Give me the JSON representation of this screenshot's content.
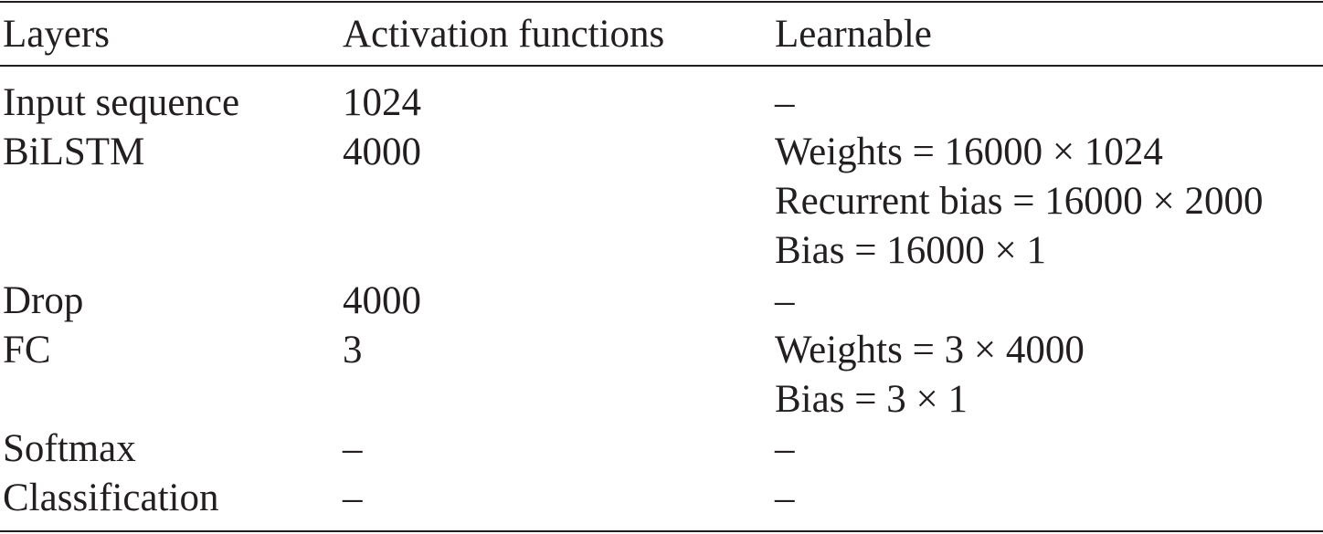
{
  "table": {
    "header": [
      "Layers",
      "Activation functions",
      "Learnable"
    ],
    "rows": [
      [
        "Input sequence",
        "1024",
        [
          "–"
        ]
      ],
      [
        "BiLSTM",
        "4000",
        [
          "Weights = 16000 × 1024",
          "Recurrent bias = 16000 × 2000",
          "Bias = 16000 × 1"
        ]
      ],
      [
        "Drop",
        "4000",
        [
          "–"
        ]
      ],
      [
        "FC",
        "3",
        [
          "Weights = 3 × 4000",
          "Bias = 3 × 1"
        ]
      ],
      [
        "Softmax",
        "–",
        [
          "–"
        ]
      ],
      [
        "Classification",
        "–",
        [
          "–"
        ]
      ]
    ]
  }
}
